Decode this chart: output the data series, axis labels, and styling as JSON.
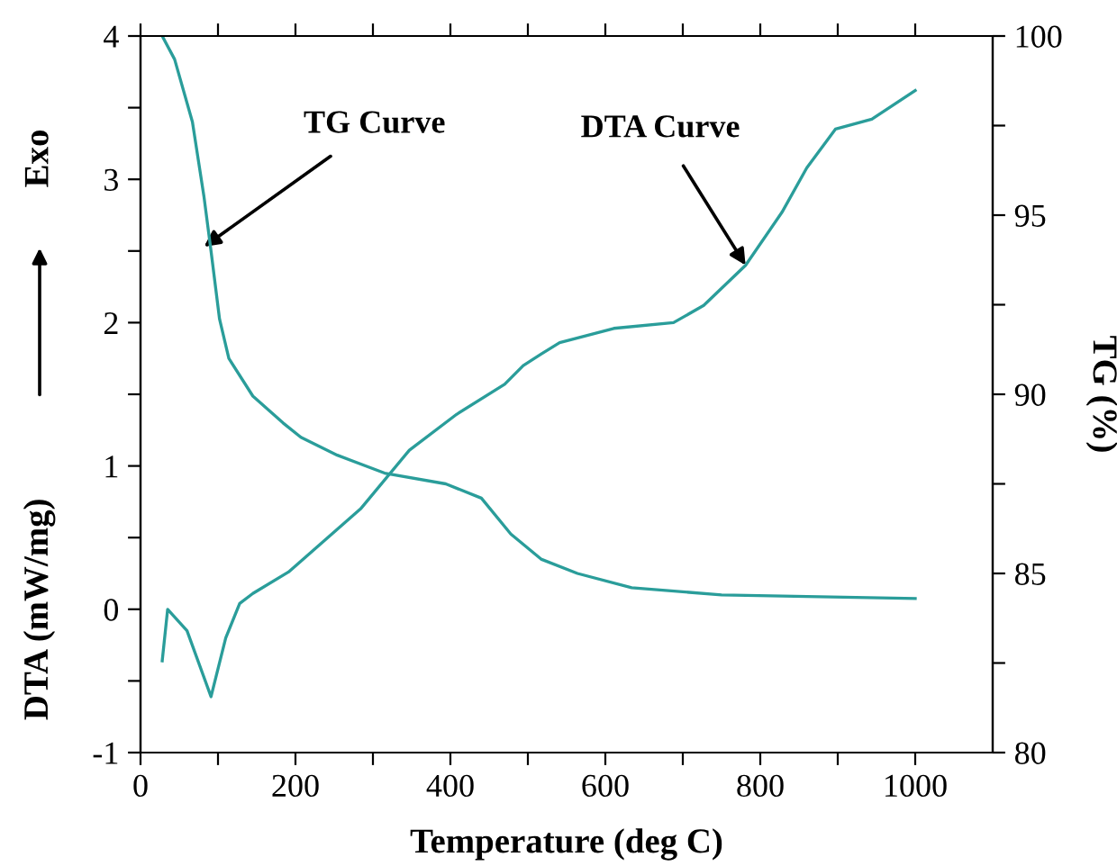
{
  "chart_data": {
    "type": "line",
    "xlabel": "Temperature (deg C)",
    "ylabel": "DTA (mW/mg)",
    "y2label": "TG (%)",
    "xlim": [
      0,
      1100
    ],
    "ylim": [
      -1,
      4
    ],
    "y2lim": [
      80,
      100
    ],
    "xticks": [
      0,
      {
        "value": 100,
        "label": null
      },
      200,
      {
        "value": 300,
        "label": null
      },
      400,
      {
        "value": 500,
        "label": null
      },
      600,
      {
        "value": 700,
        "label": null
      },
      800,
      {
        "value": 900,
        "label": null
      },
      1000
    ],
    "yticks": [
      -1,
      {
        "value": -0.5,
        "label": null
      },
      0,
      {
        "value": 0.5,
        "label": null
      },
      1,
      {
        "value": 1.5,
        "label": null
      },
      2,
      {
        "value": 2.5,
        "label": null
      },
      3,
      {
        "value": 3.5,
        "label": null
      },
      4
    ],
    "y2ticks": [
      80,
      {
        "value": 82.5,
        "label": null
      },
      85,
      {
        "value": 87.5,
        "label": null
      },
      90,
      {
        "value": 92.5,
        "label": null
      },
      95,
      {
        "value": 97.5,
        "label": null
      },
      100
    ],
    "grid": false,
    "legend": false,
    "marker": "none",
    "line_style": "solid",
    "series": [
      {
        "color": "#2a9d9a",
        "x": [
          28,
          35,
          60,
          91,
          110,
          128,
          145,
          191,
          284,
          347,
          408,
          470,
          494,
          517,
          541,
          611,
          688,
          727,
          781,
          828,
          860,
          897,
          944,
          1000
        ],
        "values": [
          -0.36,
          0.0,
          -0.15,
          -0.61,
          -0.2,
          0.04,
          0.11,
          0.26,
          0.7,
          1.11,
          1.36,
          1.57,
          1.7,
          1.78,
          1.86,
          1.96,
          2.0,
          2.12,
          2.4,
          2.77,
          3.08,
          3.35,
          3.42,
          3.62
        ]
      },
      {
        "color": "#2a9d9a",
        "axis": "y2",
        "x": [
          28,
          44,
          67,
          82,
          91,
          102,
          114,
          145,
          184,
          207,
          254,
          315,
          394,
          440,
          478,
          517,
          564,
          634,
          750,
          1000
        ],
        "values": [
          100,
          99.35,
          97.6,
          95.5,
          94.0,
          92.1,
          91.0,
          89.95,
          89.2,
          88.8,
          88.3,
          87.8,
          87.5,
          87.1,
          86.1,
          85.4,
          85.0,
          84.6,
          84.4,
          84.3
        ]
      }
    ],
    "annotations": [
      {
        "text": "TG Curve",
        "x": 82,
        "y": 2.53
      },
      {
        "text": "DTA Curve",
        "x": 781,
        "y": 2.4
      },
      "Exo"
    ]
  }
}
